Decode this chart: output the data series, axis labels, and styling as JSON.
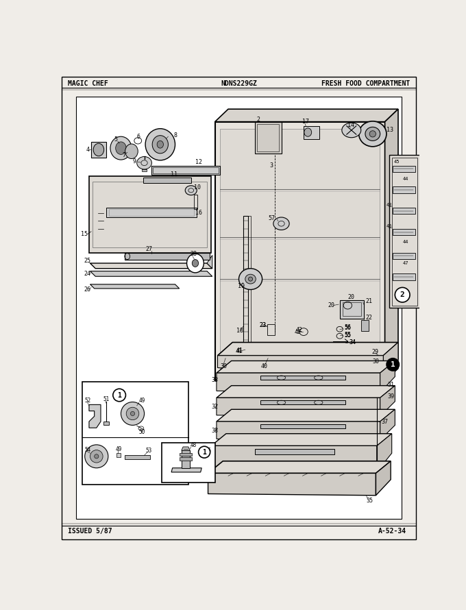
{
  "page_bg": "#f0ede8",
  "diagram_bg": "#f0ede8",
  "border_color": "#000000",
  "header_texts": {
    "left": "MAGIC CHEF",
    "center": "NDNS229GZ",
    "right": "FRESH FOOD COMPARTMENT"
  },
  "footer_texts": {
    "left": "ISSUED 5/87",
    "right": "A-52-34"
  },
  "text_color": "#000000",
  "line_color": "#000000"
}
